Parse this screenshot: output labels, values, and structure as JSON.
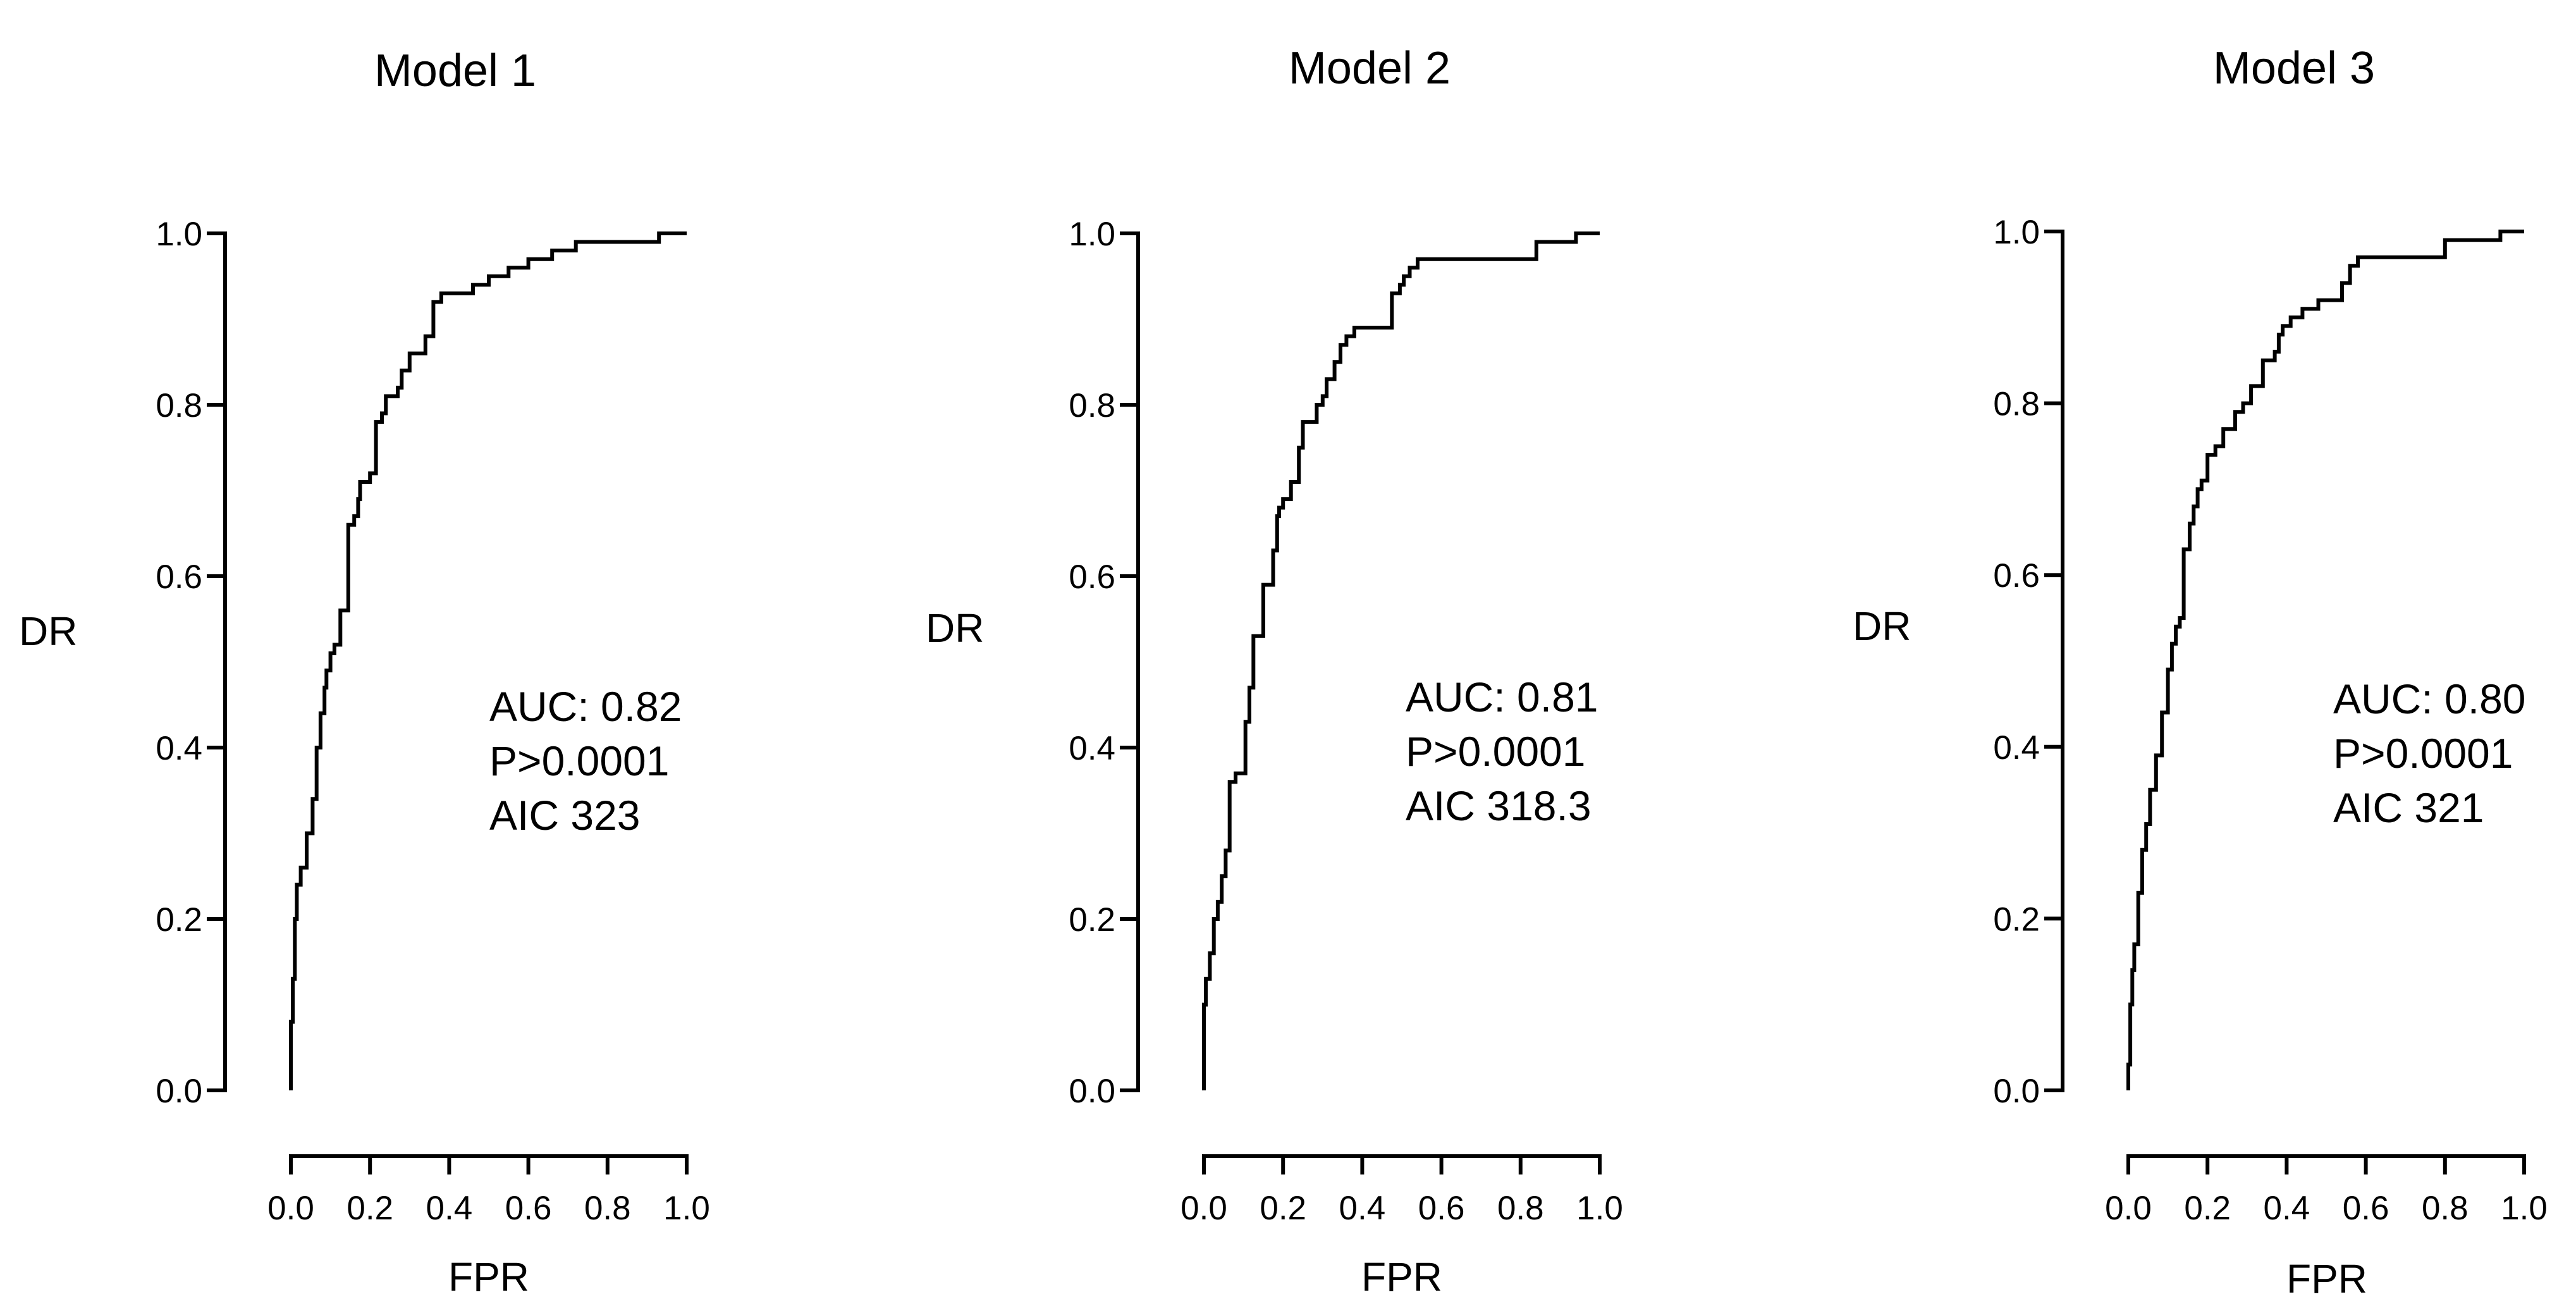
{
  "chart_data": [
    {
      "type": "line",
      "title": "Model 1",
      "xlabel": "FPR",
      "ylabel": "DR",
      "xlim": [
        0,
        1
      ],
      "ylim": [
        0,
        1
      ],
      "x_ticks": [
        "0.0",
        "0.2",
        "0.4",
        "0.6",
        "0.8",
        "1.0"
      ],
      "y_ticks": [
        "0.0",
        "0.2",
        "0.4",
        "0.6",
        "0.8",
        "1.0"
      ],
      "grid": false,
      "annotations": [
        "AUC: 0.82",
        "P>0.0001",
        "AIC 323"
      ],
      "series": [
        {
          "x": [
            0,
            0,
            0.005,
            0.005,
            0.01,
            0.01,
            0.015,
            0.015,
            0.025,
            0.025,
            0.04,
            0.04,
            0.055,
            0.055,
            0.065,
            0.065,
            0.075,
            0.075,
            0.085,
            0.085,
            0.09,
            0.09,
            0.1,
            0.1,
            0.11,
            0.11,
            0.125,
            0.125,
            0.145,
            0.145,
            0.16,
            0.16,
            0.17,
            0.17,
            0.175,
            0.175,
            0.2,
            0.2,
            0.215,
            0.215,
            0.23,
            0.23,
            0.24,
            0.24,
            0.27,
            0.27,
            0.28,
            0.28,
            0.3,
            0.3,
            0.34,
            0.34,
            0.36,
            0.36,
            0.37,
            0.37,
            0.38,
            0.38,
            0.46,
            0.46,
            0.5,
            0.5,
            0.55,
            0.55,
            0.6,
            0.6,
            0.66,
            0.66,
            0.72,
            0.72,
            0.93,
            0.93,
            1.0
          ],
          "y": [
            0,
            0.08,
            0.08,
            0.13,
            0.13,
            0.2,
            0.2,
            0.24,
            0.24,
            0.26,
            0.26,
            0.3,
            0.3,
            0.34,
            0.34,
            0.4,
            0.4,
            0.44,
            0.44,
            0.47,
            0.47,
            0.49,
            0.49,
            0.51,
            0.51,
            0.52,
            0.52,
            0.56,
            0.56,
            0.66,
            0.66,
            0.67,
            0.67,
            0.69,
            0.69,
            0.71,
            0.71,
            0.72,
            0.72,
            0.78,
            0.78,
            0.79,
            0.79,
            0.81,
            0.81,
            0.82,
            0.82,
            0.84,
            0.84,
            0.86,
            0.86,
            0.88,
            0.88,
            0.92,
            0.92,
            0.92,
            0.92,
            0.93,
            0.93,
            0.94,
            0.94,
            0.95,
            0.95,
            0.96,
            0.96,
            0.97,
            0.97,
            0.98,
            0.98,
            0.99,
            0.99,
            1.0,
            1.0
          ]
        }
      ]
    },
    {
      "type": "line",
      "title": "Model 2",
      "xlabel": "FPR",
      "ylabel": "DR",
      "xlim": [
        0,
        1
      ],
      "ylim": [
        0,
        1
      ],
      "x_ticks": [
        "0.0",
        "0.2",
        "0.4",
        "0.6",
        "0.8",
        "1.0"
      ],
      "y_ticks": [
        "0.0",
        "0.2",
        "0.4",
        "0.6",
        "0.8",
        "1.0"
      ],
      "grid": false,
      "annotations": [
        "AUC: 0.81",
        "P>0.0001",
        "AIC 318.3"
      ],
      "series": [
        {
          "x": [
            0,
            0,
            0.005,
            0.005,
            0.015,
            0.015,
            0.025,
            0.025,
            0.035,
            0.035,
            0.045,
            0.045,
            0.055,
            0.055,
            0.065,
            0.065,
            0.08,
            0.08,
            0.105,
            0.105,
            0.115,
            0.115,
            0.125,
            0.125,
            0.135,
            0.135,
            0.15,
            0.15,
            0.175,
            0.175,
            0.185,
            0.185,
            0.19,
            0.19,
            0.2,
            0.2,
            0.22,
            0.22,
            0.24,
            0.24,
            0.25,
            0.25,
            0.285,
            0.285,
            0.3,
            0.3,
            0.31,
            0.31,
            0.33,
            0.33,
            0.345,
            0.345,
            0.36,
            0.36,
            0.38,
            0.38,
            0.475,
            0.475,
            0.495,
            0.495,
            0.505,
            0.505,
            0.52,
            0.52,
            0.54,
            0.54,
            0.56,
            0.56,
            0.84,
            0.84,
            0.94,
            0.94,
            1.0
          ],
          "y": [
            0,
            0.1,
            0.1,
            0.13,
            0.13,
            0.16,
            0.16,
            0.2,
            0.2,
            0.22,
            0.22,
            0.25,
            0.25,
            0.28,
            0.28,
            0.36,
            0.36,
            0.37,
            0.37,
            0.43,
            0.43,
            0.47,
            0.47,
            0.53,
            0.53,
            0.53,
            0.53,
            0.59,
            0.59,
            0.63,
            0.63,
            0.67,
            0.67,
            0.68,
            0.68,
            0.69,
            0.69,
            0.71,
            0.71,
            0.75,
            0.75,
            0.78,
            0.78,
            0.8,
            0.8,
            0.81,
            0.81,
            0.83,
            0.83,
            0.85,
            0.85,
            0.87,
            0.87,
            0.88,
            0.88,
            0.89,
            0.89,
            0.93,
            0.93,
            0.94,
            0.94,
            0.95,
            0.95,
            0.96,
            0.96,
            0.97,
            0.97,
            0.97,
            0.97,
            0.99,
            0.99,
            1.0,
            1.0
          ]
        }
      ]
    },
    {
      "type": "line",
      "title": "Model 3",
      "xlabel": "FPR",
      "ylabel": "DR",
      "xlim": [
        0,
        1
      ],
      "ylim": [
        0,
        1
      ],
      "x_ticks": [
        "0.0",
        "0.2",
        "0.4",
        "0.6",
        "0.8",
        "1.0"
      ],
      "y_ticks": [
        "0.0",
        "0.2",
        "0.4",
        "0.6",
        "0.8",
        "1.0"
      ],
      "grid": false,
      "annotations": [
        "AUC: 0.80",
        "P>0.0001",
        "AIC 321"
      ],
      "series": [
        {
          "x": [
            0,
            0,
            0.005,
            0.005,
            0.01,
            0.01,
            0.015,
            0.015,
            0.025,
            0.025,
            0.035,
            0.035,
            0.045,
            0.045,
            0.055,
            0.055,
            0.07,
            0.07,
            0.085,
            0.085,
            0.1,
            0.1,
            0.11,
            0.11,
            0.12,
            0.12,
            0.13,
            0.13,
            0.14,
            0.14,
            0.155,
            0.155,
            0.165,
            0.165,
            0.175,
            0.175,
            0.185,
            0.185,
            0.2,
            0.2,
            0.22,
            0.22,
            0.24,
            0.24,
            0.27,
            0.27,
            0.29,
            0.29,
            0.31,
            0.31,
            0.34,
            0.34,
            0.37,
            0.37,
            0.38,
            0.38,
            0.39,
            0.39,
            0.4,
            0.4,
            0.41,
            0.41,
            0.44,
            0.44,
            0.48,
            0.48,
            0.54,
            0.54,
            0.56,
            0.56,
            0.58,
            0.58,
            0.6,
            0.6,
            0.8,
            0.8,
            0.94,
            0.94,
            1.0
          ],
          "y": [
            0,
            0.03,
            0.03,
            0.1,
            0.1,
            0.14,
            0.14,
            0.17,
            0.17,
            0.23,
            0.23,
            0.28,
            0.28,
            0.31,
            0.31,
            0.35,
            0.35,
            0.39,
            0.39,
            0.44,
            0.44,
            0.49,
            0.49,
            0.52,
            0.52,
            0.54,
            0.54,
            0.55,
            0.55,
            0.63,
            0.63,
            0.66,
            0.66,
            0.68,
            0.68,
            0.7,
            0.7,
            0.71,
            0.71,
            0.74,
            0.74,
            0.75,
            0.75,
            0.77,
            0.77,
            0.79,
            0.79,
            0.8,
            0.8,
            0.82,
            0.82,
            0.85,
            0.85,
            0.86,
            0.86,
            0.88,
            0.88,
            0.89,
            0.89,
            0.89,
            0.89,
            0.9,
            0.9,
            0.91,
            0.91,
            0.92,
            0.92,
            0.94,
            0.94,
            0.96,
            0.96,
            0.97,
            0.97,
            0.97,
            0.97,
            0.99,
            0.99,
            1.0,
            1.0
          ]
        }
      ]
    }
  ]
}
